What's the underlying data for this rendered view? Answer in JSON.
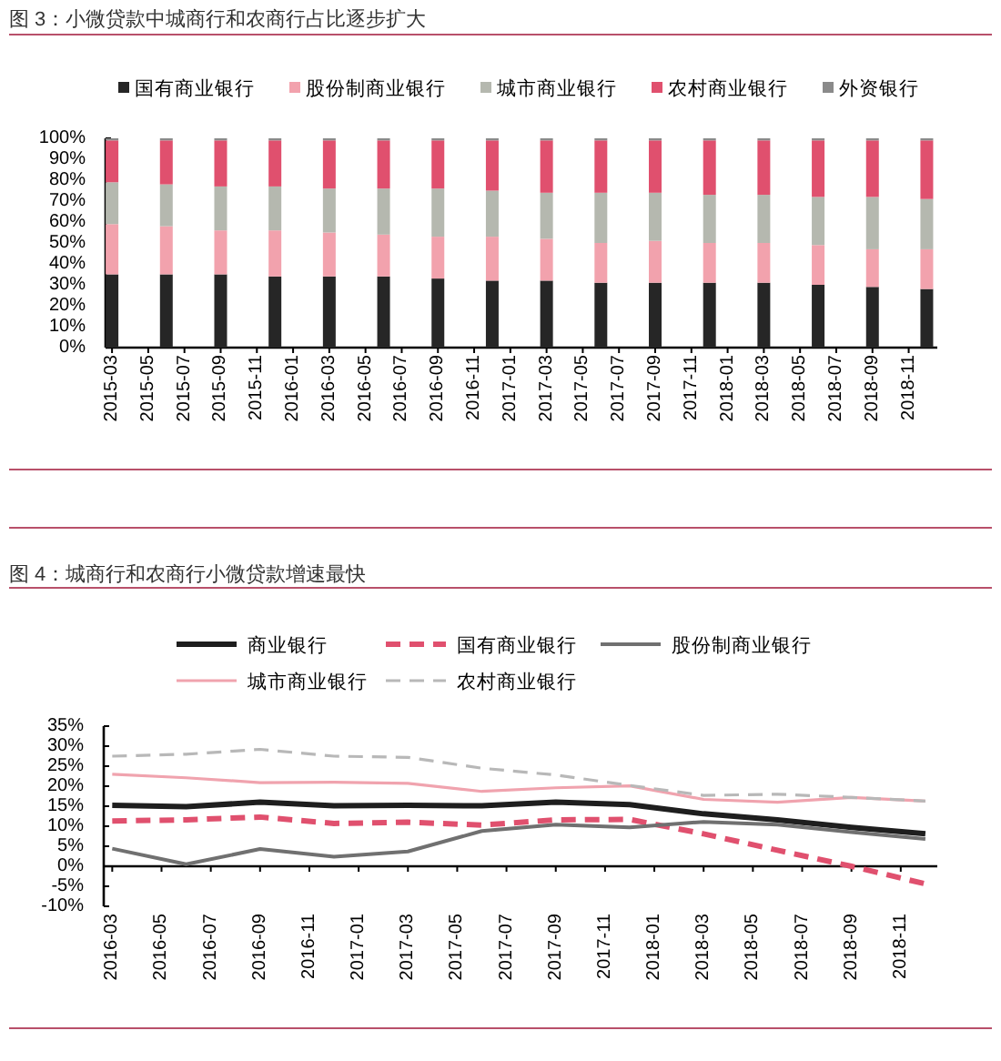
{
  "chart_data": [
    {
      "type": "bar",
      "title": "图 3：小微贷款中城商行和农商行占比逐步扩大",
      "stacked": true,
      "legend": "top",
      "x": [
        "2015-03",
        "2015-06",
        "2015-09",
        "2015-12",
        "2016-03",
        "2016-06",
        "2016-09",
        "2016-12",
        "2017-03",
        "2017-06",
        "2017-09",
        "2017-12",
        "2018-03",
        "2018-06",
        "2018-09",
        "2018-12"
      ],
      "xlim": [
        "2015-02-19",
        "2018-12-19"
      ],
      "xticks": [
        "2015-03",
        "2015-05",
        "2015-07",
        "2015-09",
        "2015-11",
        "2016-01",
        "2016-03",
        "2016-05",
        "2016-07",
        "2016-09",
        "2016-11",
        "2017-01",
        "2017-03",
        "2017-05",
        "2017-07",
        "2017-09",
        "2017-11",
        "2018-01",
        "2018-03",
        "2018-05",
        "2018-07",
        "2018-09",
        "2018-11"
      ],
      "ylim": [
        0,
        100
      ],
      "yticks": [
        {
          "value": 0,
          "label": "0%"
        },
        {
          "value": 10,
          "label": "10%"
        },
        {
          "value": 20,
          "label": "20%"
        },
        {
          "value": 30,
          "label": "30%"
        },
        {
          "value": 40,
          "label": "40%"
        },
        {
          "value": 50,
          "label": "50%"
        },
        {
          "value": 60,
          "label": "60%"
        },
        {
          "value": 70,
          "label": "70%"
        },
        {
          "value": 80,
          "label": "80%"
        },
        {
          "value": 90,
          "label": "90%"
        },
        {
          "value": 100,
          "label": "100%"
        }
      ],
      "series": [
        {
          "name": "国有商业银行",
          "color": "#262626",
          "values": [
            35,
            35,
            35,
            34,
            34,
            34,
            33,
            32,
            32,
            31,
            31,
            31,
            31,
            30,
            29,
            28
          ]
        },
        {
          "name": "股份制商业银行",
          "color": "#f2a2ad",
          "values": [
            24,
            23,
            21,
            22,
            21,
            20,
            20,
            21,
            20,
            19,
            20,
            19,
            19,
            19,
            18,
            19
          ]
        },
        {
          "name": "城市商业银行",
          "color": "#b5b8af",
          "values": [
            20,
            20,
            21,
            21,
            21,
            22,
            23,
            22,
            22,
            24,
            23,
            23,
            23,
            23,
            25,
            24
          ]
        },
        {
          "name": "农村商业银行",
          "color": "#e0506e",
          "values": [
            20,
            21,
            22,
            22,
            23,
            23,
            23,
            24,
            25,
            25,
            25,
            26,
            26,
            27,
            27,
            28
          ]
        },
        {
          "name": "外资银行",
          "color": "#8a8a8a",
          "values": [
            1,
            1,
            1,
            1,
            1,
            1,
            1,
            1,
            1,
            1,
            1,
            1,
            1,
            1,
            1,
            1
          ]
        }
      ]
    },
    {
      "type": "line",
      "title": "图 4：城商行和农商行小微贷款增速最快",
      "legend": "top",
      "marker": "none",
      "x": [
        "2016-03",
        "2016-06",
        "2016-09",
        "2016-12",
        "2017-03",
        "2017-06",
        "2017-09",
        "2017-12",
        "2018-03",
        "2018-06",
        "2018-09",
        "2018-12"
      ],
      "xlim": [
        "2016-02-20",
        "2018-12-16"
      ],
      "xticks": [
        "2016-03",
        "2016-05",
        "2016-07",
        "2016-09",
        "2016-11",
        "2017-01",
        "2017-03",
        "2017-05",
        "2017-07",
        "2017-09",
        "2017-11",
        "2018-01",
        "2018-03",
        "2018-05",
        "2018-07",
        "2018-09",
        "2018-11"
      ],
      "ylim": [
        -10,
        35
      ],
      "yticks": [
        {
          "value": -10,
          "label": "-10%"
        },
        {
          "value": -5,
          "label": "-5%"
        },
        {
          "value": 0,
          "label": "0%"
        },
        {
          "value": 5,
          "label": "5%"
        },
        {
          "value": 10,
          "label": "10%"
        },
        {
          "value": 15,
          "label": "15%"
        },
        {
          "value": 20,
          "label": "20%"
        },
        {
          "value": 25,
          "label": "25%"
        },
        {
          "value": 30,
          "label": "30%"
        },
        {
          "value": 35,
          "label": "35%"
        }
      ],
      "series": [
        {
          "name": "商业银行",
          "color": "#1e1e1e",
          "line_style": "solid",
          "values": [
            15.2,
            14.9,
            16.0,
            15.1,
            15.2,
            15.1,
            16.0,
            15.4,
            13.1,
            11.6,
            9.7,
            8.1
          ]
        },
        {
          "name": "国有商业银行",
          "color": "#e0506e",
          "line_style": "dashed",
          "values": [
            11.3,
            11.6,
            12.3,
            10.7,
            11.0,
            10.3,
            11.6,
            11.7,
            8.1,
            4.0,
            0.0,
            -4.4
          ]
        },
        {
          "name": "股份制商业银行",
          "color": "#707070",
          "line_style": "solid",
          "values": [
            4.4,
            0.5,
            4.3,
            2.4,
            3.7,
            8.8,
            10.4,
            9.7,
            11.1,
            10.4,
            8.5,
            6.8
          ]
        },
        {
          "name": "城市商业银行",
          "color": "#f0a3ae",
          "line_style": "solid",
          "values": [
            23.0,
            22.1,
            20.9,
            21.0,
            20.7,
            18.7,
            19.6,
            20.1,
            16.7,
            16.0,
            17.2,
            16.3
          ]
        },
        {
          "name": "农村商业银行",
          "color": "#b8b8b8",
          "line_style": "dashed",
          "values": [
            27.5,
            28.0,
            29.2,
            27.5,
            27.2,
            24.5,
            22.8,
            20.2,
            17.7,
            18.0,
            17.2,
            16.3
          ]
        }
      ]
    }
  ]
}
